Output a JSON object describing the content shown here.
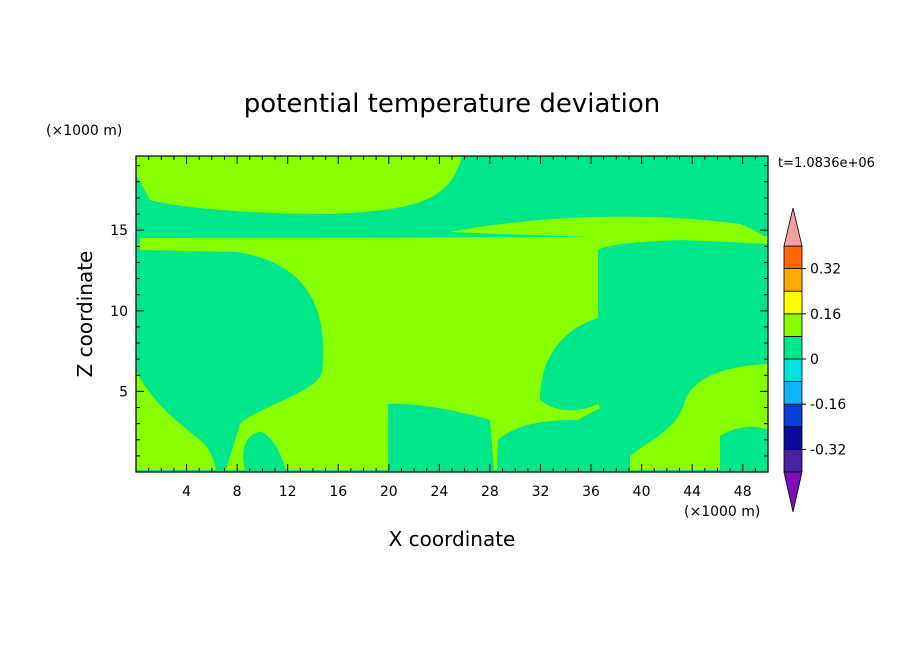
{
  "chart_data": {
    "type": "heatmap",
    "title": "potential temperature deviation",
    "xlabel": "X coordinate",
    "ylabel": "Z coordinate",
    "x_unit": "(×1000 m)",
    "y_unit": "(×1000 m)",
    "time_label": "t=1.0836e+06",
    "xlim": [
      0,
      50
    ],
    "ylim": [
      0,
      19.6
    ],
    "x_ticks": [
      4,
      8,
      12,
      16,
      20,
      24,
      28,
      32,
      36,
      40,
      44,
      48
    ],
    "y_ticks": [
      5,
      10,
      15
    ],
    "colorbar": {
      "levels": [
        -0.4,
        -0.32,
        -0.24,
        -0.16,
        -0.08,
        0,
        0.08,
        0.16,
        0.24,
        0.32,
        0.4
      ],
      "colors": [
        "#4a1fa8",
        "#0b0b9a",
        "#0b3dd8",
        "#0fb4f8",
        "#00e0e0",
        "#00e68a",
        "#88ff00",
        "#ffff00",
        "#ffaa00",
        "#ff6600",
        "#ff2020"
      ],
      "under_color": "#7a10b8",
      "over_color": "#f4a0a0",
      "labels": [
        "0.32",
        "0.16",
        "0",
        "-0.16",
        "-0.32"
      ],
      "label_values": [
        0.32,
        0.16,
        0,
        -0.16,
        -0.32
      ]
    },
    "field_colors": {
      "negative": "#00e68a",
      "positive": "#88ff00"
    }
  }
}
